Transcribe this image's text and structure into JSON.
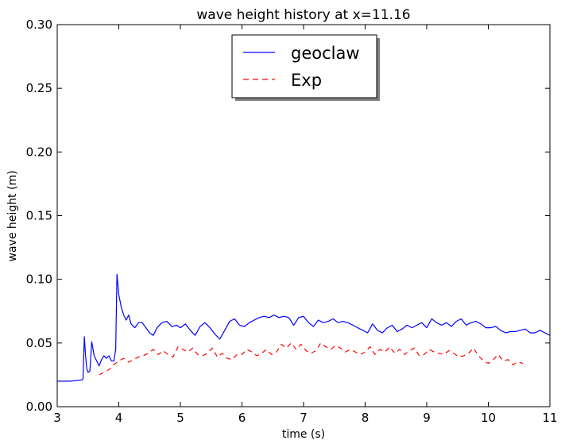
{
  "chart_data": {
    "type": "line",
    "title": "wave height history at x=11.16",
    "xlabel": "time (s)",
    "ylabel": "wave height (m)",
    "xlim": [
      3,
      11
    ],
    "ylim": [
      0,
      0.3
    ],
    "xticks": [
      "3",
      "4",
      "5",
      "6",
      "7",
      "8",
      "9",
      "10",
      "11"
    ],
    "yticks": [
      "0.00",
      "0.05",
      "0.10",
      "0.15",
      "0.20",
      "0.25",
      "0.30"
    ],
    "grid": false,
    "legend_position": "top-center",
    "series": [
      {
        "name": "geoclaw",
        "color": "#0000ff",
        "style": "solid",
        "points": [
          [
            3.0,
            0.02
          ],
          [
            3.2,
            0.02
          ],
          [
            3.4,
            0.021
          ],
          [
            3.42,
            0.022
          ],
          [
            3.44,
            0.055
          ],
          [
            3.46,
            0.04
          ],
          [
            3.48,
            0.03
          ],
          [
            3.5,
            0.027
          ],
          [
            3.53,
            0.028
          ],
          [
            3.56,
            0.051
          ],
          [
            3.6,
            0.04
          ],
          [
            3.64,
            0.036
          ],
          [
            3.68,
            0.032
          ],
          [
            3.72,
            0.037
          ],
          [
            3.76,
            0.04
          ],
          [
            3.8,
            0.038
          ],
          [
            3.84,
            0.04
          ],
          [
            3.88,
            0.036
          ],
          [
            3.92,
            0.036
          ],
          [
            3.95,
            0.045
          ],
          [
            3.97,
            0.104
          ],
          [
            4.0,
            0.088
          ],
          [
            4.04,
            0.078
          ],
          [
            4.08,
            0.072
          ],
          [
            4.12,
            0.068
          ],
          [
            4.16,
            0.072
          ],
          [
            4.2,
            0.065
          ],
          [
            4.26,
            0.062
          ],
          [
            4.32,
            0.066
          ],
          [
            4.38,
            0.066
          ],
          [
            4.44,
            0.062
          ],
          [
            4.5,
            0.058
          ],
          [
            4.56,
            0.056
          ],
          [
            4.62,
            0.062
          ],
          [
            4.7,
            0.066
          ],
          [
            4.78,
            0.067
          ],
          [
            4.86,
            0.063
          ],
          [
            4.94,
            0.064
          ],
          [
            5.0,
            0.062
          ],
          [
            5.08,
            0.065
          ],
          [
            5.16,
            0.06
          ],
          [
            5.24,
            0.056
          ],
          [
            5.32,
            0.063
          ],
          [
            5.4,
            0.066
          ],
          [
            5.48,
            0.062
          ],
          [
            5.56,
            0.057
          ],
          [
            5.64,
            0.053
          ],
          [
            5.72,
            0.06
          ],
          [
            5.8,
            0.067
          ],
          [
            5.88,
            0.069
          ],
          [
            5.96,
            0.064
          ],
          [
            6.04,
            0.063
          ],
          [
            6.12,
            0.066
          ],
          [
            6.2,
            0.068
          ],
          [
            6.28,
            0.07
          ],
          [
            6.36,
            0.071
          ],
          [
            6.44,
            0.07
          ],
          [
            6.52,
            0.072
          ],
          [
            6.6,
            0.07
          ],
          [
            6.68,
            0.071
          ],
          [
            6.76,
            0.07
          ],
          [
            6.84,
            0.064
          ],
          [
            6.92,
            0.07
          ],
          [
            7.0,
            0.071
          ],
          [
            7.08,
            0.066
          ],
          [
            7.16,
            0.063
          ],
          [
            7.24,
            0.068
          ],
          [
            7.32,
            0.066
          ],
          [
            7.4,
            0.067
          ],
          [
            7.48,
            0.069
          ],
          [
            7.56,
            0.066
          ],
          [
            7.64,
            0.067
          ],
          [
            7.72,
            0.066
          ],
          [
            7.8,
            0.064
          ],
          [
            7.88,
            0.062
          ],
          [
            7.96,
            0.06
          ],
          [
            8.04,
            0.058
          ],
          [
            8.12,
            0.065
          ],
          [
            8.2,
            0.06
          ],
          [
            8.28,
            0.058
          ],
          [
            8.36,
            0.062
          ],
          [
            8.44,
            0.064
          ],
          [
            8.52,
            0.059
          ],
          [
            8.6,
            0.061
          ],
          [
            8.68,
            0.064
          ],
          [
            8.76,
            0.062
          ],
          [
            8.84,
            0.064
          ],
          [
            8.92,
            0.066
          ],
          [
            9.0,
            0.062
          ],
          [
            9.08,
            0.069
          ],
          [
            9.16,
            0.066
          ],
          [
            9.24,
            0.064
          ],
          [
            9.32,
            0.066
          ],
          [
            9.4,
            0.063
          ],
          [
            9.48,
            0.067
          ],
          [
            9.56,
            0.069
          ],
          [
            9.64,
            0.064
          ],
          [
            9.72,
            0.066
          ],
          [
            9.8,
            0.067
          ],
          [
            9.88,
            0.065
          ],
          [
            9.96,
            0.062
          ],
          [
            10.04,
            0.062
          ],
          [
            10.12,
            0.063
          ],
          [
            10.2,
            0.06
          ],
          [
            10.28,
            0.058
          ],
          [
            10.36,
            0.059
          ],
          [
            10.44,
            0.059
          ],
          [
            10.52,
            0.06
          ],
          [
            10.6,
            0.061
          ],
          [
            10.68,
            0.058
          ],
          [
            10.76,
            0.058
          ],
          [
            10.84,
            0.06
          ],
          [
            10.92,
            0.058
          ],
          [
            11.0,
            0.056
          ]
        ]
      },
      {
        "name": "Exp",
        "color": "#ff0000",
        "style": "dashed",
        "points": [
          [
            3.68,
            0.025
          ],
          [
            3.76,
            0.027
          ],
          [
            3.84,
            0.029
          ],
          [
            3.92,
            0.033
          ],
          [
            4.0,
            0.036
          ],
          [
            4.08,
            0.038
          ],
          [
            4.16,
            0.035
          ],
          [
            4.24,
            0.037
          ],
          [
            4.32,
            0.039
          ],
          [
            4.4,
            0.04
          ],
          [
            4.48,
            0.042
          ],
          [
            4.56,
            0.045
          ],
          [
            4.64,
            0.041
          ],
          [
            4.72,
            0.044
          ],
          [
            4.8,
            0.041
          ],
          [
            4.88,
            0.039
          ],
          [
            4.96,
            0.047
          ],
          [
            5.04,
            0.045
          ],
          [
            5.12,
            0.043
          ],
          [
            5.2,
            0.046
          ],
          [
            5.28,
            0.041
          ],
          [
            5.36,
            0.04
          ],
          [
            5.44,
            0.042
          ],
          [
            5.52,
            0.046
          ],
          [
            5.6,
            0.039
          ],
          [
            5.68,
            0.042
          ],
          [
            5.76,
            0.038
          ],
          [
            5.84,
            0.037
          ],
          [
            5.92,
            0.041
          ],
          [
            6.0,
            0.041
          ],
          [
            6.08,
            0.045
          ],
          [
            6.16,
            0.043
          ],
          [
            6.24,
            0.04
          ],
          [
            6.32,
            0.042
          ],
          [
            6.4,
            0.045
          ],
          [
            6.48,
            0.041
          ],
          [
            6.56,
            0.043
          ],
          [
            6.64,
            0.049
          ],
          [
            6.72,
            0.046
          ],
          [
            6.8,
            0.05
          ],
          [
            6.88,
            0.045
          ],
          [
            6.96,
            0.049
          ],
          [
            7.04,
            0.044
          ],
          [
            7.12,
            0.042
          ],
          [
            7.2,
            0.044
          ],
          [
            7.28,
            0.05
          ],
          [
            7.36,
            0.047
          ],
          [
            7.44,
            0.045
          ],
          [
            7.52,
            0.048
          ],
          [
            7.6,
            0.046
          ],
          [
            7.68,
            0.043
          ],
          [
            7.76,
            0.045
          ],
          [
            7.84,
            0.043
          ],
          [
            7.92,
            0.041
          ],
          [
            8.0,
            0.043
          ],
          [
            8.08,
            0.047
          ],
          [
            8.16,
            0.041
          ],
          [
            8.24,
            0.045
          ],
          [
            8.32,
            0.043
          ],
          [
            8.4,
            0.047
          ],
          [
            8.48,
            0.042
          ],
          [
            8.56,
            0.045
          ],
          [
            8.64,
            0.041
          ],
          [
            8.72,
            0.044
          ],
          [
            8.8,
            0.046
          ],
          [
            8.88,
            0.04
          ],
          [
            8.96,
            0.041
          ],
          [
            9.04,
            0.045
          ],
          [
            9.12,
            0.043
          ],
          [
            9.2,
            0.042
          ],
          [
            9.28,
            0.041
          ],
          [
            9.36,
            0.044
          ],
          [
            9.44,
            0.042
          ],
          [
            9.52,
            0.039
          ],
          [
            9.6,
            0.04
          ],
          [
            9.68,
            0.042
          ],
          [
            9.76,
            0.046
          ],
          [
            9.84,
            0.04
          ],
          [
            9.92,
            0.036
          ],
          [
            10.0,
            0.034
          ],
          [
            10.08,
            0.037
          ],
          [
            10.16,
            0.041
          ],
          [
            10.24,
            0.036
          ],
          [
            10.32,
            0.037
          ],
          [
            10.4,
            0.033
          ],
          [
            10.48,
            0.035
          ],
          [
            10.56,
            0.034
          ]
        ]
      }
    ]
  }
}
